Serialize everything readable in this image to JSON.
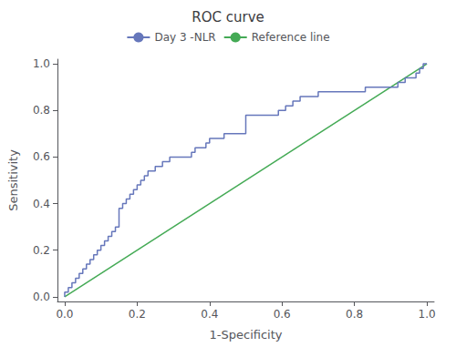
{
  "chart_data": {
    "type": "line",
    "title": "ROC curve",
    "xlabel": "1-Specificity",
    "ylabel": "Sensitivity",
    "xlim": [
      -0.02,
      1.02
    ],
    "ylim": [
      -0.02,
      1.02
    ],
    "xticks": [
      {
        "value": 0.0,
        "label": "0.0"
      },
      0.2,
      0.4,
      0.6,
      0.8,
      {
        "value": 1.0,
        "label": "1.0"
      }
    ],
    "yticks": [
      {
        "value": 0.0,
        "label": "0.0"
      },
      0.2,
      0.4,
      0.6,
      0.8,
      {
        "value": 1.0,
        "label": "1.0"
      }
    ],
    "grid": false,
    "legend": "top",
    "series": [
      {
        "name": "Day 3 -NLR",
        "color": "#6677bb",
        "x": [
          0.0,
          0.0,
          0.01,
          0.01,
          0.02,
          0.02,
          0.03,
          0.03,
          0.04,
          0.04,
          0.05,
          0.05,
          0.06,
          0.06,
          0.07,
          0.07,
          0.08,
          0.08,
          0.09,
          0.09,
          0.1,
          0.1,
          0.11,
          0.11,
          0.12,
          0.12,
          0.13,
          0.13,
          0.14,
          0.14,
          0.15,
          0.15,
          0.15,
          0.16,
          0.16,
          0.17,
          0.17,
          0.18,
          0.18,
          0.19,
          0.19,
          0.2,
          0.2,
          0.21,
          0.21,
          0.22,
          0.22,
          0.23,
          0.23,
          0.24,
          0.25,
          0.25,
          0.26,
          0.27,
          0.27,
          0.28,
          0.29,
          0.29,
          0.3,
          0.31,
          0.32,
          0.33,
          0.34,
          0.35,
          0.35,
          0.36,
          0.36,
          0.37,
          0.38,
          0.39,
          0.39,
          0.4,
          0.4,
          0.41,
          0.42,
          0.43,
          0.44,
          0.44,
          0.45,
          0.46,
          0.47,
          0.48,
          0.49,
          0.5,
          0.5,
          0.51,
          0.52,
          0.53,
          0.54,
          0.55,
          0.56,
          0.57,
          0.58,
          0.59,
          0.59,
          0.6,
          0.61,
          0.61,
          0.62,
          0.63,
          0.63,
          0.64,
          0.65,
          0.65,
          0.66,
          0.67,
          0.68,
          0.69,
          0.7,
          0.7,
          0.71,
          0.72,
          0.73,
          0.74,
          0.75,
          0.76,
          0.77,
          0.78,
          0.79,
          0.8,
          0.81,
          0.82,
          0.83,
          0.83,
          0.84,
          0.85,
          0.86,
          0.87,
          0.88,
          0.89,
          0.9,
          0.91,
          0.92,
          0.92,
          0.93,
          0.94,
          0.94,
          0.95,
          0.96,
          0.97,
          0.97,
          0.98,
          0.98,
          0.99,
          0.99,
          1.0
        ],
        "values": [
          0.0,
          0.02,
          0.02,
          0.04,
          0.04,
          0.06,
          0.06,
          0.08,
          0.08,
          0.1,
          0.1,
          0.12,
          0.12,
          0.14,
          0.14,
          0.16,
          0.16,
          0.18,
          0.18,
          0.2,
          0.2,
          0.22,
          0.22,
          0.24,
          0.24,
          0.26,
          0.26,
          0.28,
          0.28,
          0.3,
          0.3,
          0.32,
          0.38,
          0.38,
          0.4,
          0.4,
          0.42,
          0.42,
          0.44,
          0.44,
          0.46,
          0.46,
          0.48,
          0.48,
          0.5,
          0.5,
          0.52,
          0.52,
          0.54,
          0.54,
          0.54,
          0.56,
          0.56,
          0.56,
          0.58,
          0.58,
          0.58,
          0.6,
          0.6,
          0.6,
          0.6,
          0.6,
          0.6,
          0.6,
          0.62,
          0.62,
          0.64,
          0.64,
          0.64,
          0.64,
          0.66,
          0.66,
          0.68,
          0.68,
          0.68,
          0.68,
          0.68,
          0.7,
          0.7,
          0.7,
          0.7,
          0.7,
          0.7,
          0.7,
          0.78,
          0.78,
          0.78,
          0.78,
          0.78,
          0.78,
          0.78,
          0.78,
          0.78,
          0.78,
          0.8,
          0.8,
          0.8,
          0.82,
          0.82,
          0.82,
          0.84,
          0.84,
          0.84,
          0.86,
          0.86,
          0.86,
          0.86,
          0.86,
          0.86,
          0.88,
          0.88,
          0.88,
          0.88,
          0.88,
          0.88,
          0.88,
          0.88,
          0.88,
          0.88,
          0.88,
          0.88,
          0.88,
          0.88,
          0.9,
          0.9,
          0.9,
          0.9,
          0.9,
          0.9,
          0.9,
          0.9,
          0.9,
          0.9,
          0.92,
          0.92,
          0.92,
          0.94,
          0.94,
          0.94,
          0.94,
          0.96,
          0.96,
          0.98,
          0.98,
          1.0,
          1.0
        ]
      },
      {
        "name": "Reference line",
        "color": "#44aa55",
        "x": [
          0,
          1
        ],
        "values": [
          0,
          1
        ]
      }
    ]
  }
}
